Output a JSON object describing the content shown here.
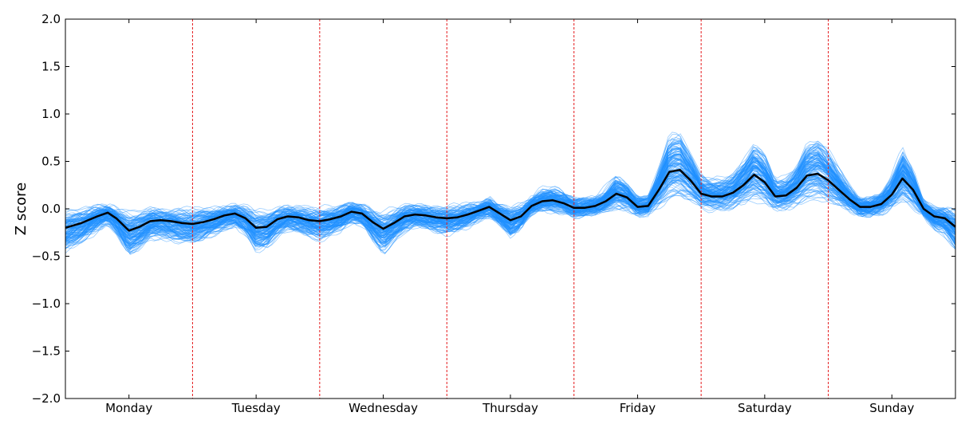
{
  "chart_data": {
    "type": "line",
    "title": "",
    "xlabel": "",
    "ylabel": "Z score",
    "ylim": [
      -2.0,
      2.0
    ],
    "yticks": [
      "−2.0",
      "−1.5",
      "−1.0",
      "−0.5",
      "0.0",
      "0.5",
      "1.0",
      "1.5",
      "2.0"
    ],
    "ytick_values": [
      -2.0,
      -1.5,
      -1.0,
      -0.5,
      0.0,
      0.5,
      1.0,
      1.5,
      2.0
    ],
    "categories": [
      "Monday",
      "Tuesday",
      "Wednesday",
      "Thursday",
      "Friday",
      "Saturday",
      "Sunday"
    ],
    "x_range": [
      0,
      7
    ],
    "day_separators": [
      1,
      2,
      3,
      4,
      5,
      6
    ],
    "grid": false,
    "legend": "none",
    "colors": {
      "individual": "#1E90FF",
      "mean": "#000000",
      "separator": "#E41A1C"
    },
    "series": [
      {
        "role": "mean",
        "x": [
          0,
          0.125,
          0.25,
          0.333,
          0.4,
          0.5,
          0.583,
          0.667,
          0.75,
          0.833,
          0.917,
          1.0,
          1.083,
          1.167,
          1.25,
          1.333,
          1.417,
          1.5,
          1.583,
          1.667,
          1.75,
          1.833,
          1.917,
          2.0,
          2.083,
          2.167,
          2.25,
          2.333,
          2.417,
          2.5,
          2.583,
          2.667,
          2.75,
          2.833,
          2.917,
          3.0,
          3.083,
          3.167,
          3.25,
          3.333,
          3.417,
          3.5,
          3.583,
          3.667,
          3.75,
          3.833,
          3.917,
          4.0,
          4.083,
          4.167,
          4.25,
          4.333,
          4.417,
          4.5,
          4.583,
          4.667,
          4.75,
          4.833,
          4.917,
          5.0,
          5.083,
          5.167,
          5.25,
          5.333,
          5.417,
          5.5,
          5.583,
          5.667,
          5.75,
          5.833,
          5.917,
          6.0,
          6.083,
          6.167,
          6.25,
          6.333,
          6.417,
          6.5,
          6.583,
          6.667,
          6.75,
          6.833,
          6.917,
          7.0
        ],
        "y": [
          -0.2,
          -0.15,
          -0.08,
          -0.04,
          -0.1,
          -0.23,
          -0.19,
          -0.13,
          -0.12,
          -0.13,
          -0.15,
          -0.16,
          -0.14,
          -0.11,
          -0.07,
          -0.05,
          -0.1,
          -0.2,
          -0.19,
          -0.11,
          -0.08,
          -0.09,
          -0.12,
          -0.13,
          -0.11,
          -0.08,
          -0.03,
          -0.05,
          -0.14,
          -0.21,
          -0.15,
          -0.08,
          -0.06,
          -0.07,
          -0.09,
          -0.1,
          -0.09,
          -0.06,
          -0.02,
          0.02,
          -0.05,
          -0.12,
          -0.08,
          0.03,
          0.08,
          0.09,
          0.06,
          0.01,
          0.01,
          0.03,
          0.08,
          0.16,
          0.12,
          0.02,
          0.03,
          0.2,
          0.39,
          0.41,
          0.3,
          0.16,
          0.13,
          0.13,
          0.17,
          0.25,
          0.36,
          0.28,
          0.13,
          0.14,
          0.22,
          0.35,
          0.37,
          0.3,
          0.2,
          0.1,
          0.02,
          0.02,
          0.05,
          0.15,
          0.32,
          0.2,
          0.0,
          -0.08,
          -0.1,
          -0.19
        ]
      }
    ]
  }
}
